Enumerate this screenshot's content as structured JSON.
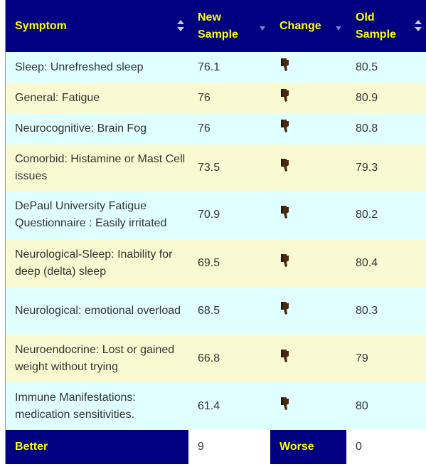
{
  "header": {
    "columns": [
      "Symptom",
      "New Sample",
      "Change",
      "Old Sample"
    ]
  },
  "table": {
    "rows": [
      [
        "Sleep: Unrefreshed sleep",
        76.1,
        80.5
      ],
      [
        "General: Fatigue",
        76,
        80.9
      ],
      [
        "Neurocognitive: Brain Fog",
        76,
        80.8
      ],
      [
        "Comorbid: Histamine or Mast Cell issues",
        73.5,
        79.3
      ],
      [
        "DePaul University Fatigue Questionnaire : Easily irritated",
        70.9,
        80.2
      ],
      [
        "Neurological-Sleep: Inability for deep (delta) sleep",
        69.5,
        80.4
      ],
      [
        "Neurological: emotional overload",
        68.5,
        80.3
      ],
      [
        "Neuroendocrine: Lost or gained weight without trying",
        66.8,
        79
      ],
      [
        "Immune Manifestations: medication sensitivities.",
        61.4,
        80
      ]
    ]
  },
  "footer": {
    "better_label": "Better",
    "better_value": 9,
    "worse_label": "Worse",
    "worse_value": 0
  }
}
